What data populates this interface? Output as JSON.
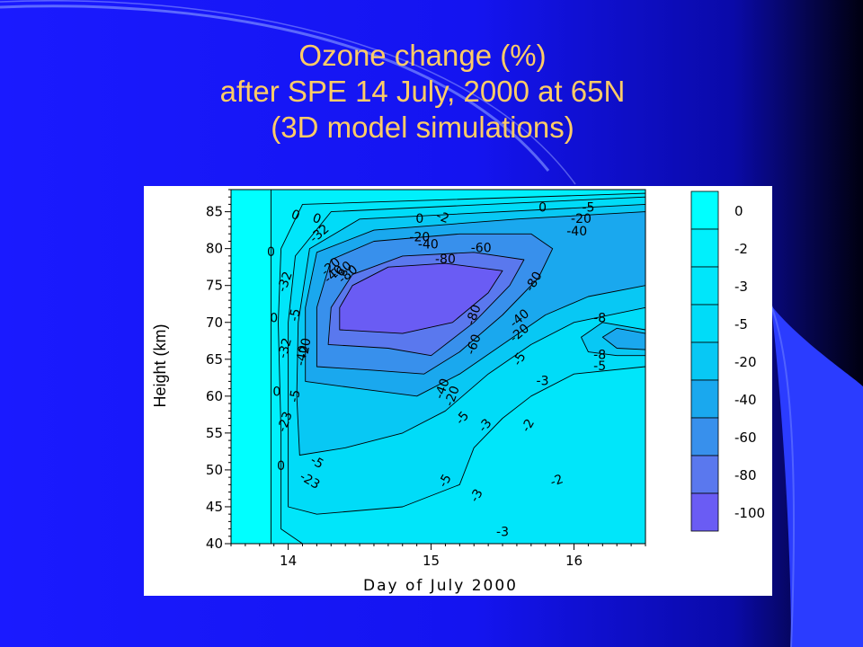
{
  "slide": {
    "background_color": "#1a1aff",
    "title_color": "#ffcc66",
    "title_lines": [
      "Ozone change (%)",
      "after SPE 14 July, 2000 at 65N",
      "(3D model simulations)"
    ]
  },
  "chart_data": {
    "type": "heatmap",
    "title": "",
    "xlabel": "Day of July 2000",
    "ylabel": "Height (km)",
    "xlim": [
      13.6,
      16.5
    ],
    "ylim": [
      40,
      88
    ],
    "x_ticks": [
      14,
      15,
      16
    ],
    "x_tick_labels": [
      "14",
      "15",
      "16"
    ],
    "y_ticks": [
      40,
      45,
      50,
      55,
      60,
      65,
      70,
      75,
      80,
      85
    ],
    "y_tick_labels": [
      "40",
      "45",
      "50",
      "55",
      "60",
      "65",
      "70",
      "75",
      "80",
      "85"
    ],
    "colorbar": {
      "labels": [
        "0",
        "-2",
        "-3",
        "-5",
        "-20",
        "-40",
        "-60",
        "-80",
        "-100"
      ],
      "bands": [
        {
          "label": "0",
          "color": "#00ffff"
        },
        {
          "label": "-2",
          "color": "#00f0fc"
        },
        {
          "label": "-3",
          "color": "#00e6fa"
        },
        {
          "label": "-5",
          "color": "#00dcf8"
        },
        {
          "label": "-20",
          "color": "#08c8f4"
        },
        {
          "label": "-40",
          "color": "#1aa8ee"
        },
        {
          "label": "-60",
          "color": "#3890ec"
        },
        {
          "label": "-80",
          "color": "#5a78ee"
        },
        {
          "label": "-100",
          "color": "#6a5cf4"
        }
      ]
    },
    "contour_labels": [
      {
        "text": "0",
        "x": 13.88,
        "y": 79.5,
        "rot": 0
      },
      {
        "text": "0",
        "x": 13.9,
        "y": 70.5,
        "rot": 0
      },
      {
        "text": "0",
        "x": 13.92,
        "y": 60.5,
        "rot": 0
      },
      {
        "text": "0",
        "x": 13.95,
        "y": 50.5,
        "rot": 0
      },
      {
        "text": "0",
        "x": 14.05,
        "y": 84.5,
        "rot": 20
      },
      {
        "text": "0",
        "x": 14.2,
        "y": 84.0,
        "rot": 20
      },
      {
        "text": "-32",
        "x": 14.22,
        "y": 82.0,
        "rot": -40
      },
      {
        "text": "-32",
        "x": 13.98,
        "y": 75.5,
        "rot": -70
      },
      {
        "text": "-32",
        "x": 13.98,
        "y": 66.5,
        "rot": -75
      },
      {
        "text": "-5",
        "x": 14.05,
        "y": 71.0,
        "rot": -80
      },
      {
        "text": "-5",
        "x": 14.05,
        "y": 60.0,
        "rot": -80
      },
      {
        "text": "-23",
        "x": 13.98,
        "y": 56.5,
        "rot": -70
      },
      {
        "text": "-5",
        "x": 14.2,
        "y": 51.0,
        "rot": 30
      },
      {
        "text": "-23",
        "x": 14.15,
        "y": 48.5,
        "rot": 30
      },
      {
        "text": "-20",
        "x": 14.12,
        "y": 66.5,
        "rot": -80
      },
      {
        "text": "-40",
        "x": 14.1,
        "y": 65.5,
        "rot": -80
      },
      {
        "text": "-20",
        "x": 14.3,
        "y": 77.5,
        "rot": -40
      },
      {
        "text": "-40",
        "x": 14.32,
        "y": 76.5,
        "rot": -40
      },
      {
        "text": "-60",
        "x": 14.38,
        "y": 77.0,
        "rot": -40
      },
      {
        "text": "-80",
        "x": 14.42,
        "y": 76.5,
        "rot": -40
      },
      {
        "text": "0",
        "x": 14.92,
        "y": 84.0,
        "rot": 0
      },
      {
        "text": "-2",
        "x": 15.08,
        "y": 84.2,
        "rot": 20
      },
      {
        "text": "-20",
        "x": 14.92,
        "y": 81.5,
        "rot": 0
      },
      {
        "text": "-40",
        "x": 14.98,
        "y": 80.5,
        "rot": 0
      },
      {
        "text": "-60",
        "x": 15.35,
        "y": 80.0,
        "rot": 0
      },
      {
        "text": "-80",
        "x": 15.1,
        "y": 78.5,
        "rot": 0
      },
      {
        "text": "0",
        "x": 15.78,
        "y": 85.5,
        "rot": 0
      },
      {
        "text": "-5",
        "x": 16.1,
        "y": 85.5,
        "rot": 0
      },
      {
        "text": "-20",
        "x": 16.05,
        "y": 84.0,
        "rot": 0
      },
      {
        "text": "-40",
        "x": 16.02,
        "y": 82.3,
        "rot": 0
      },
      {
        "text": "-80",
        "x": 15.3,
        "y": 71.0,
        "rot": -70
      },
      {
        "text": "-60",
        "x": 15.3,
        "y": 67.0,
        "rot": -70
      },
      {
        "text": "-40",
        "x": 15.62,
        "y": 70.5,
        "rot": -40
      },
      {
        "text": "-20",
        "x": 15.62,
        "y": 68.5,
        "rot": -40
      },
      {
        "text": "-80",
        "x": 15.72,
        "y": 75.5,
        "rot": -60
      },
      {
        "text": "-5",
        "x": 15.62,
        "y": 65.0,
        "rot": -60
      },
      {
        "text": "-40",
        "x": 15.08,
        "y": 61.0,
        "rot": -70
      },
      {
        "text": "-20",
        "x": 15.15,
        "y": 60.0,
        "rot": -70
      },
      {
        "text": "-5",
        "x": 15.22,
        "y": 57.0,
        "rot": -50
      },
      {
        "text": "-3",
        "x": 15.38,
        "y": 56.0,
        "rot": -50
      },
      {
        "text": "-5",
        "x": 15.1,
        "y": 48.5,
        "rot": -60
      },
      {
        "text": "-3",
        "x": 15.32,
        "y": 46.5,
        "rot": -60
      },
      {
        "text": "-3",
        "x": 15.5,
        "y": 41.5,
        "rot": 0
      },
      {
        "text": "-3",
        "x": 15.78,
        "y": 62.0,
        "rot": 0
      },
      {
        "text": "-2",
        "x": 15.68,
        "y": 56.0,
        "rot": -60
      },
      {
        "text": "-2",
        "x": 15.88,
        "y": 48.5,
        "rot": -20
      },
      {
        "text": "-8",
        "x": 16.18,
        "y": 70.5,
        "rot": 0
      },
      {
        "text": "-8",
        "x": 16.18,
        "y": 65.5,
        "rot": 0
      },
      {
        "text": "-5",
        "x": 16.18,
        "y": 64.0,
        "rot": 0
      }
    ]
  }
}
